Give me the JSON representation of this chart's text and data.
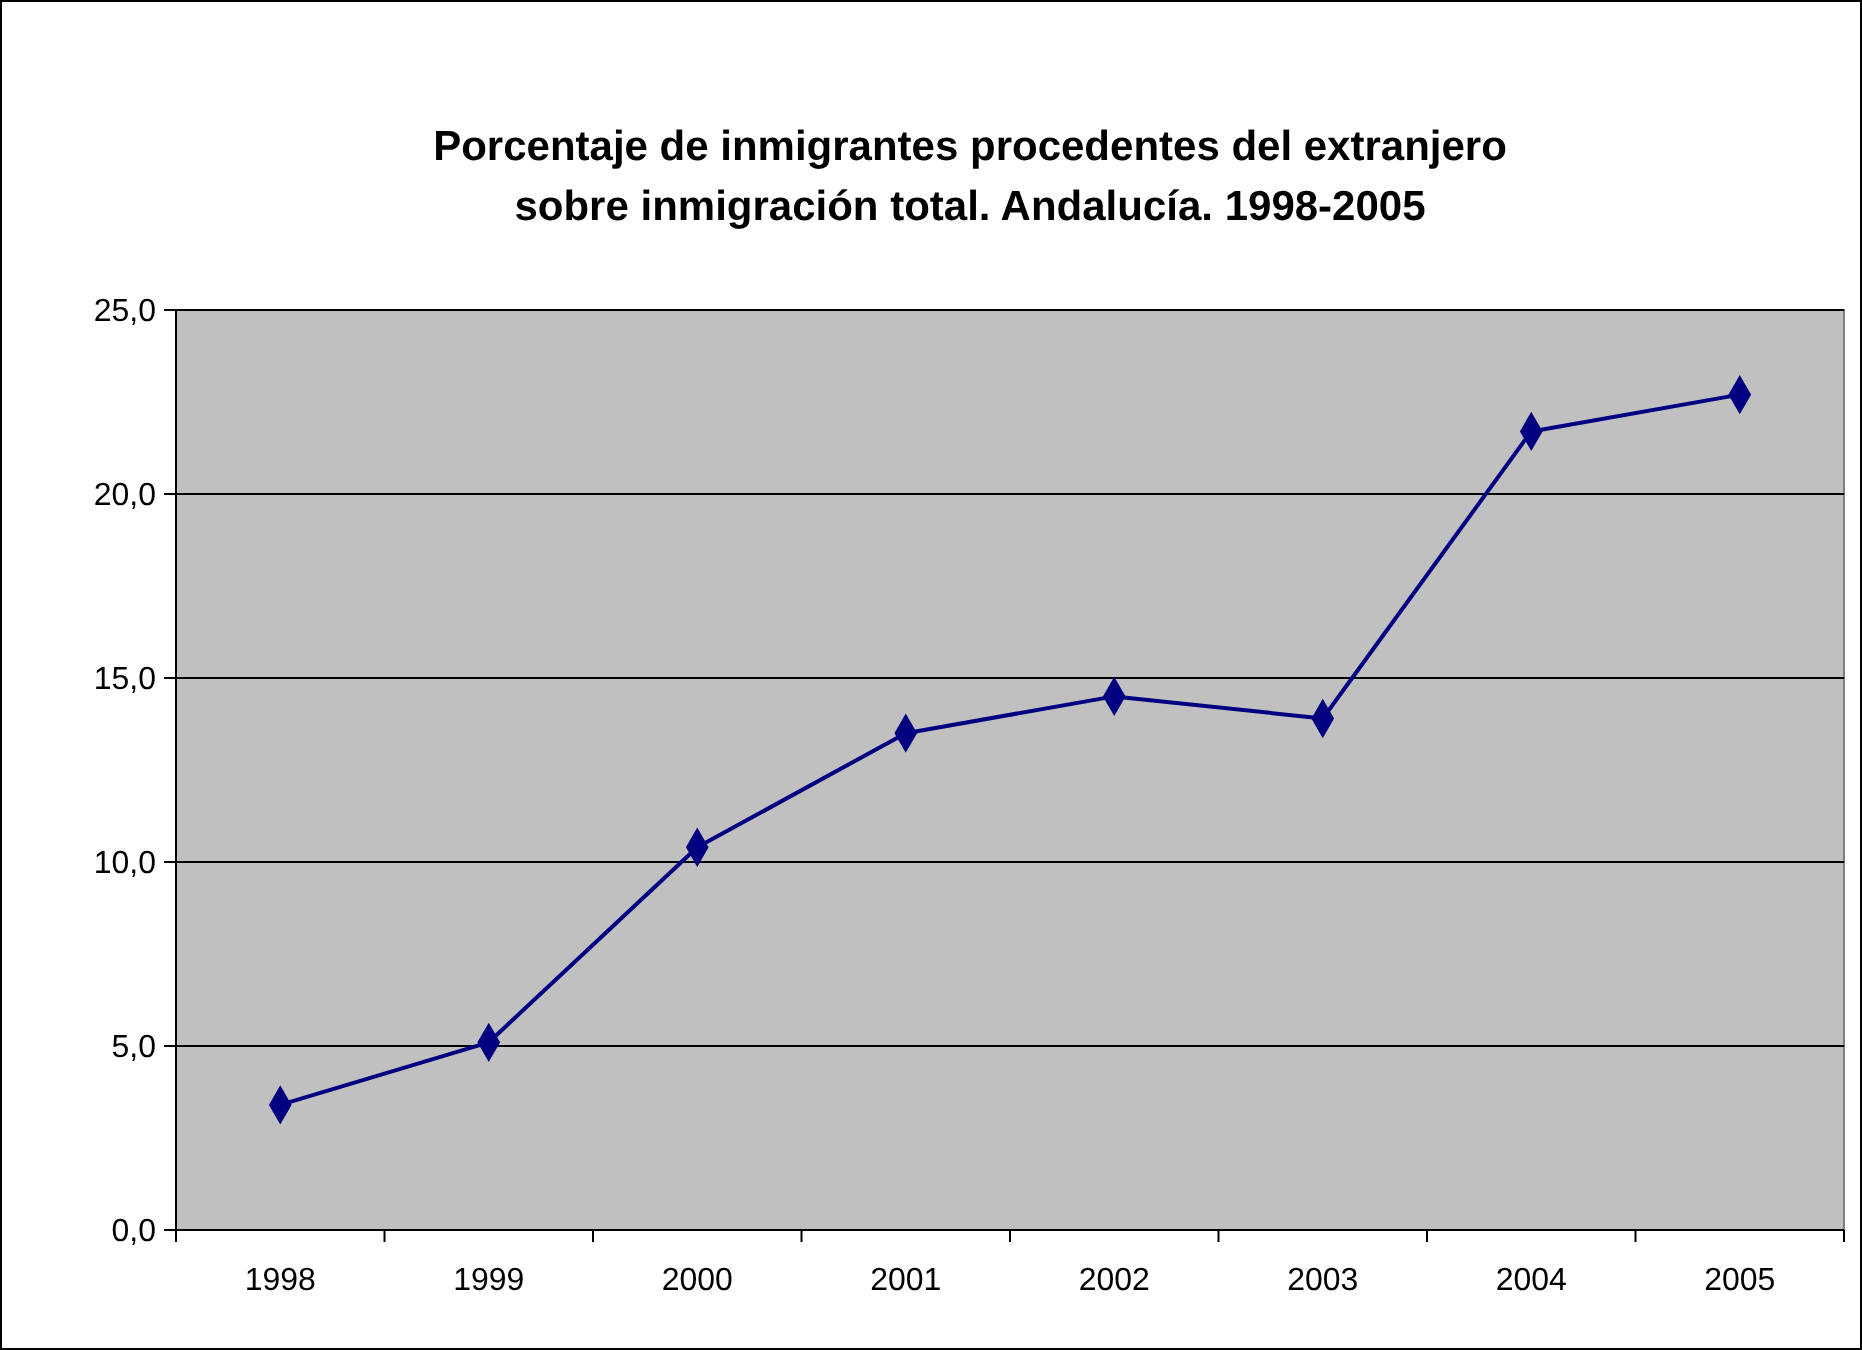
{
  "chart_data": {
    "type": "line",
    "title": "Porcentaje de inmigrantes procedentes del extranjero\nsobre inmigración total. Andalucía. 1998-2005",
    "categories": [
      "1998",
      "1999",
      "2000",
      "2001",
      "2002",
      "2003",
      "2004",
      "2005"
    ],
    "series": [
      {
        "color": "#000080",
        "values": [
          3.4,
          5.1,
          10.4,
          13.5,
          14.5,
          13.9,
          21.7,
          22.7
        ]
      }
    ],
    "ylim": [
      0,
      25
    ],
    "yticks": [
      {
        "value": 0,
        "label": "0,0"
      },
      {
        "value": 5,
        "label": "5,0"
      },
      {
        "value": 10,
        "label": "10,0"
      },
      {
        "value": 15,
        "label": "15,0"
      },
      {
        "value": 20,
        "label": "20,0"
      },
      {
        "value": 25,
        "label": "25,0"
      }
    ],
    "grid": "y",
    "marker": "diamond",
    "line_style": "solid"
  }
}
